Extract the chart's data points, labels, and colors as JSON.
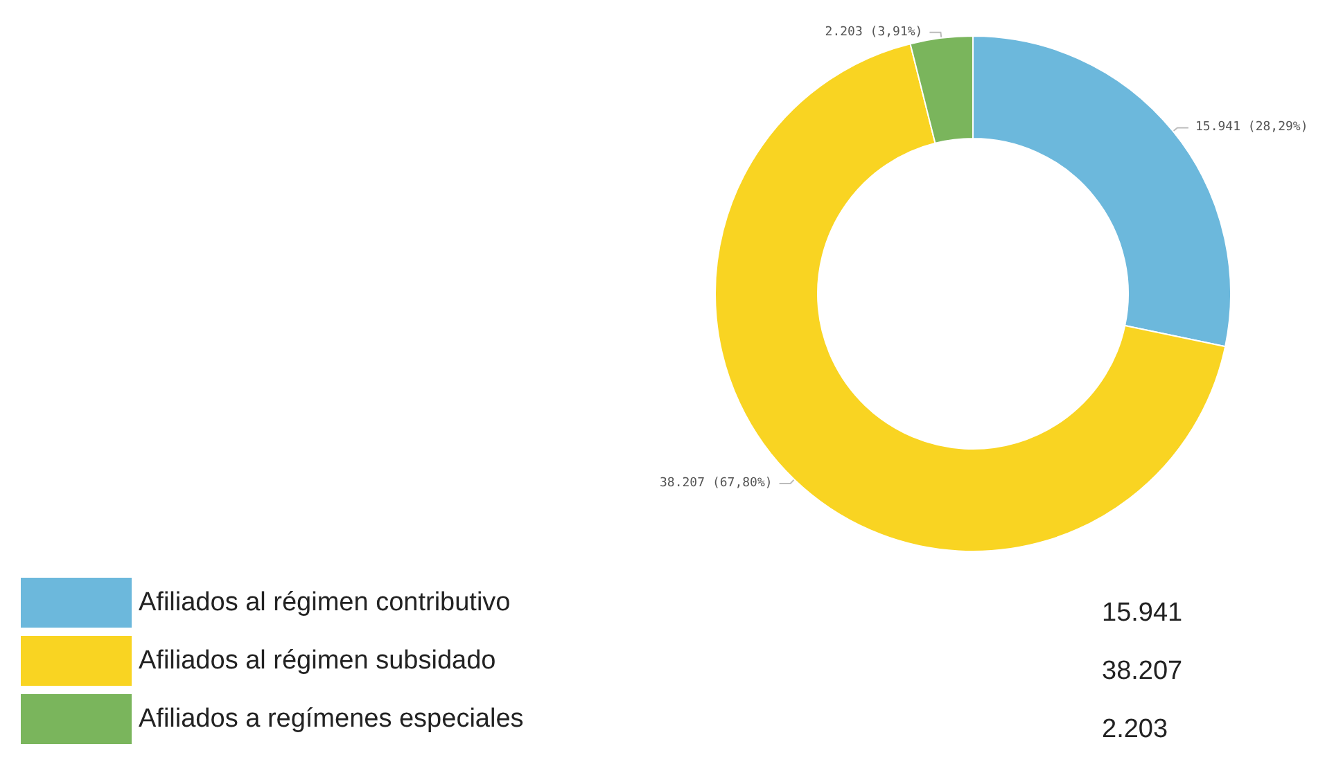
{
  "chart_data": {
    "type": "donut",
    "categories": [
      "Afiliados al régimen contributivo",
      "Afiliados al régimen subsidado",
      "Afiliados a regímenes especiales"
    ],
    "values": [
      15941,
      38207,
      2203
    ],
    "colors": [
      "#6cb8dc",
      "#f9d422",
      "#7ab55c"
    ],
    "value_labels": [
      "15.941 (28,29%)",
      "38.207 (67,80%)",
      "2.203 (3,91%)"
    ],
    "annotations": [
      "15.941",
      "38.207",
      "2.203"
    ],
    "legend": "bottom"
  }
}
